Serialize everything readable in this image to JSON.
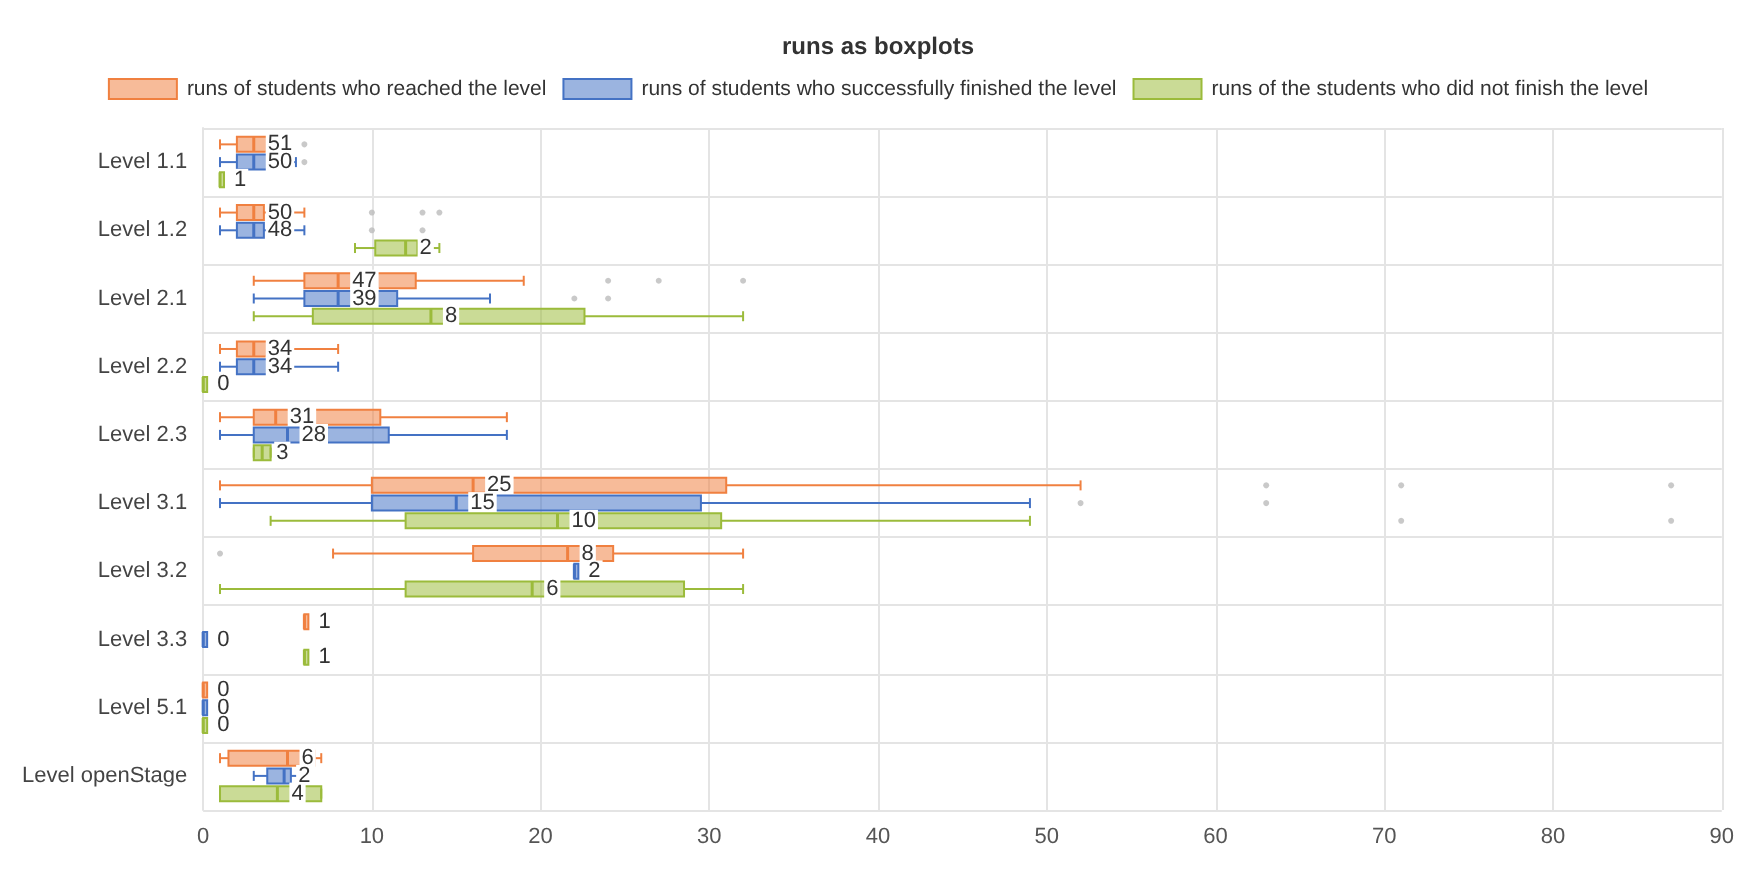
{
  "chart_data": {
    "type": "box",
    "orientation": "horizontal",
    "title": "runs as boxplots",
    "legend": "top",
    "grid": true,
    "xlim": [
      0,
      90
    ],
    "xticks": [
      0,
      10,
      20,
      30,
      40,
      50,
      60,
      70,
      80,
      90
    ],
    "categories": [
      "Level 1.1",
      "Level 1.2",
      "Level 2.1",
      "Level 2.2",
      "Level 2.3",
      "Level 3.1",
      "Level 3.2",
      "Level 3.3",
      "Level 5.1",
      "Level openStage"
    ],
    "series": [
      {
        "name": "runs of students who reached the level",
        "color": "#f08040",
        "value_labels": [
          "51",
          "50",
          "47",
          "34",
          "31",
          "25",
          "8",
          "1",
          "0",
          "6"
        ],
        "boxes": [
          {
            "low": 1,
            "q1": 2,
            "median": 3,
            "q3": 4,
            "high": 5,
            "outliers": [
              6
            ]
          },
          {
            "low": 1,
            "q1": 2,
            "median": 3,
            "q3": 3.6,
            "high": 6,
            "outliers": [
              10,
              13,
              14
            ]
          },
          {
            "low": 3,
            "q1": 6,
            "median": 8,
            "q3": 12.6,
            "high": 19,
            "outliers": [
              24,
              27,
              32
            ]
          },
          {
            "low": 1,
            "q1": 2,
            "median": 3,
            "q3": 5,
            "high": 8
          },
          {
            "low": 1,
            "q1": 3,
            "median": 4.3,
            "q3": 10.5,
            "high": 18
          },
          {
            "low": 1,
            "q1": 10,
            "median": 16,
            "q3": 31,
            "high": 52,
            "outliers": [
              63,
              71,
              87
            ]
          },
          {
            "low": 7.7,
            "q1": 16,
            "median": 21.6,
            "q3": 24.3,
            "high": 32,
            "outliers": [
              1
            ]
          },
          {
            "low": 6,
            "q1": 6,
            "median": 6,
            "q3": 6,
            "high": 6
          },
          {
            "low": 0,
            "q1": 0,
            "median": 0,
            "q3": 0,
            "high": 0
          },
          {
            "low": 1,
            "q1": 1.5,
            "median": 5,
            "q3": 6.6,
            "high": 7
          }
        ]
      },
      {
        "name": "runs of students who successfully finished the level",
        "color": "#4472c4",
        "value_labels": [
          "50",
          "48",
          "39",
          "34",
          "28",
          "15",
          "2",
          "0",
          "0",
          "2"
        ],
        "boxes": [
          {
            "low": 1,
            "q1": 2,
            "median": 3,
            "q3": 4,
            "high": 5.5,
            "outliers": [
              6
            ]
          },
          {
            "low": 1,
            "q1": 2,
            "median": 3,
            "q3": 3.6,
            "high": 6,
            "outliers": [
              10,
              13
            ]
          },
          {
            "low": 3,
            "q1": 6,
            "median": 8,
            "q3": 11.5,
            "high": 17,
            "outliers": [
              22,
              24
            ]
          },
          {
            "low": 1,
            "q1": 2,
            "median": 3,
            "q3": 5,
            "high": 8
          },
          {
            "low": 1,
            "q1": 3,
            "median": 5,
            "q3": 11,
            "high": 18
          },
          {
            "low": 1,
            "q1": 10,
            "median": 15,
            "q3": 29.5,
            "high": 49,
            "outliers": [
              52,
              63
            ]
          },
          {
            "low": 22,
            "q1": 22,
            "median": 22,
            "q3": 22,
            "high": 22
          },
          {
            "low": 0,
            "q1": 0,
            "median": 0,
            "q3": 0,
            "high": 0
          },
          {
            "low": 0,
            "q1": 0,
            "median": 0,
            "q3": 0,
            "high": 0
          },
          {
            "low": 3,
            "q1": 3.8,
            "median": 4.8,
            "q3": 5.2,
            "high": 6
          }
        ]
      },
      {
        "name": "runs of the students who did not finish the level",
        "color": "#9bbb3b",
        "value_labels": [
          "1",
          "2",
          "8",
          "0",
          "3",
          "10",
          "6",
          "1",
          "0",
          "4"
        ],
        "boxes": [
          {
            "low": 1,
            "q1": 1,
            "median": 1,
            "q3": 1,
            "high": 1
          },
          {
            "low": 9,
            "q1": 10.2,
            "median": 12,
            "q3": 12.7,
            "high": 14
          },
          {
            "low": 3,
            "q1": 6.5,
            "median": 13.5,
            "q3": 22.6,
            "high": 32
          },
          {
            "low": 0,
            "q1": 0,
            "median": 0,
            "q3": 0,
            "high": 0
          },
          {
            "low": 3,
            "q1": 3,
            "median": 3.5,
            "q3": 4,
            "high": 4
          },
          {
            "low": 4,
            "q1": 12,
            "median": 21,
            "q3": 30.7,
            "high": 49,
            "outliers": [
              71,
              87
            ]
          },
          {
            "low": 1,
            "q1": 12,
            "median": 19.5,
            "q3": 28.5,
            "high": 32
          },
          {
            "low": 6,
            "q1": 6,
            "median": 6,
            "q3": 6,
            "high": 6
          },
          {
            "low": 0,
            "q1": 0,
            "median": 0,
            "q3": 0,
            "high": 0
          },
          {
            "low": 1,
            "q1": 1,
            "median": 4.4,
            "q3": 7,
            "high": 7
          }
        ]
      }
    ]
  }
}
